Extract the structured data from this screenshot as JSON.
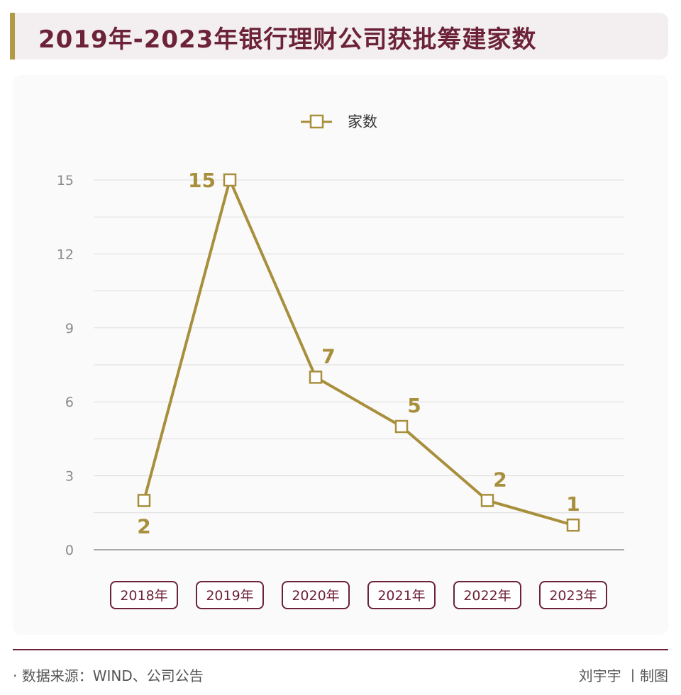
{
  "title": "2019年-2023年银行理财公司获批筹建家数",
  "legend": {
    "series_name": "家数",
    "color": "#a88f3c"
  },
  "footer": {
    "source": "· 数据来源：WIND、公司公告",
    "credit": "刘宇宇 丨制图"
  },
  "colors": {
    "accent": "#6c2238",
    "gold": "#b09a45",
    "line": "#a88f3c"
  },
  "chart_data": {
    "type": "line",
    "title": "2019年-2023年银行理财公司获批筹建家数",
    "categories": [
      "2018年",
      "2019年",
      "2020年",
      "2021年",
      "2022年",
      "2023年"
    ],
    "series": [
      {
        "name": "家数",
        "values": [
          2,
          15,
          7,
          5,
          2,
          1
        ]
      }
    ],
    "data_labels": [
      "2",
      "15",
      "7",
      "5",
      "2",
      "1"
    ],
    "yticks": [
      "0",
      "3",
      "6",
      "9",
      "12",
      "15"
    ],
    "ylim": [
      0,
      15
    ],
    "grid": true,
    "legend_position": "top-center"
  }
}
